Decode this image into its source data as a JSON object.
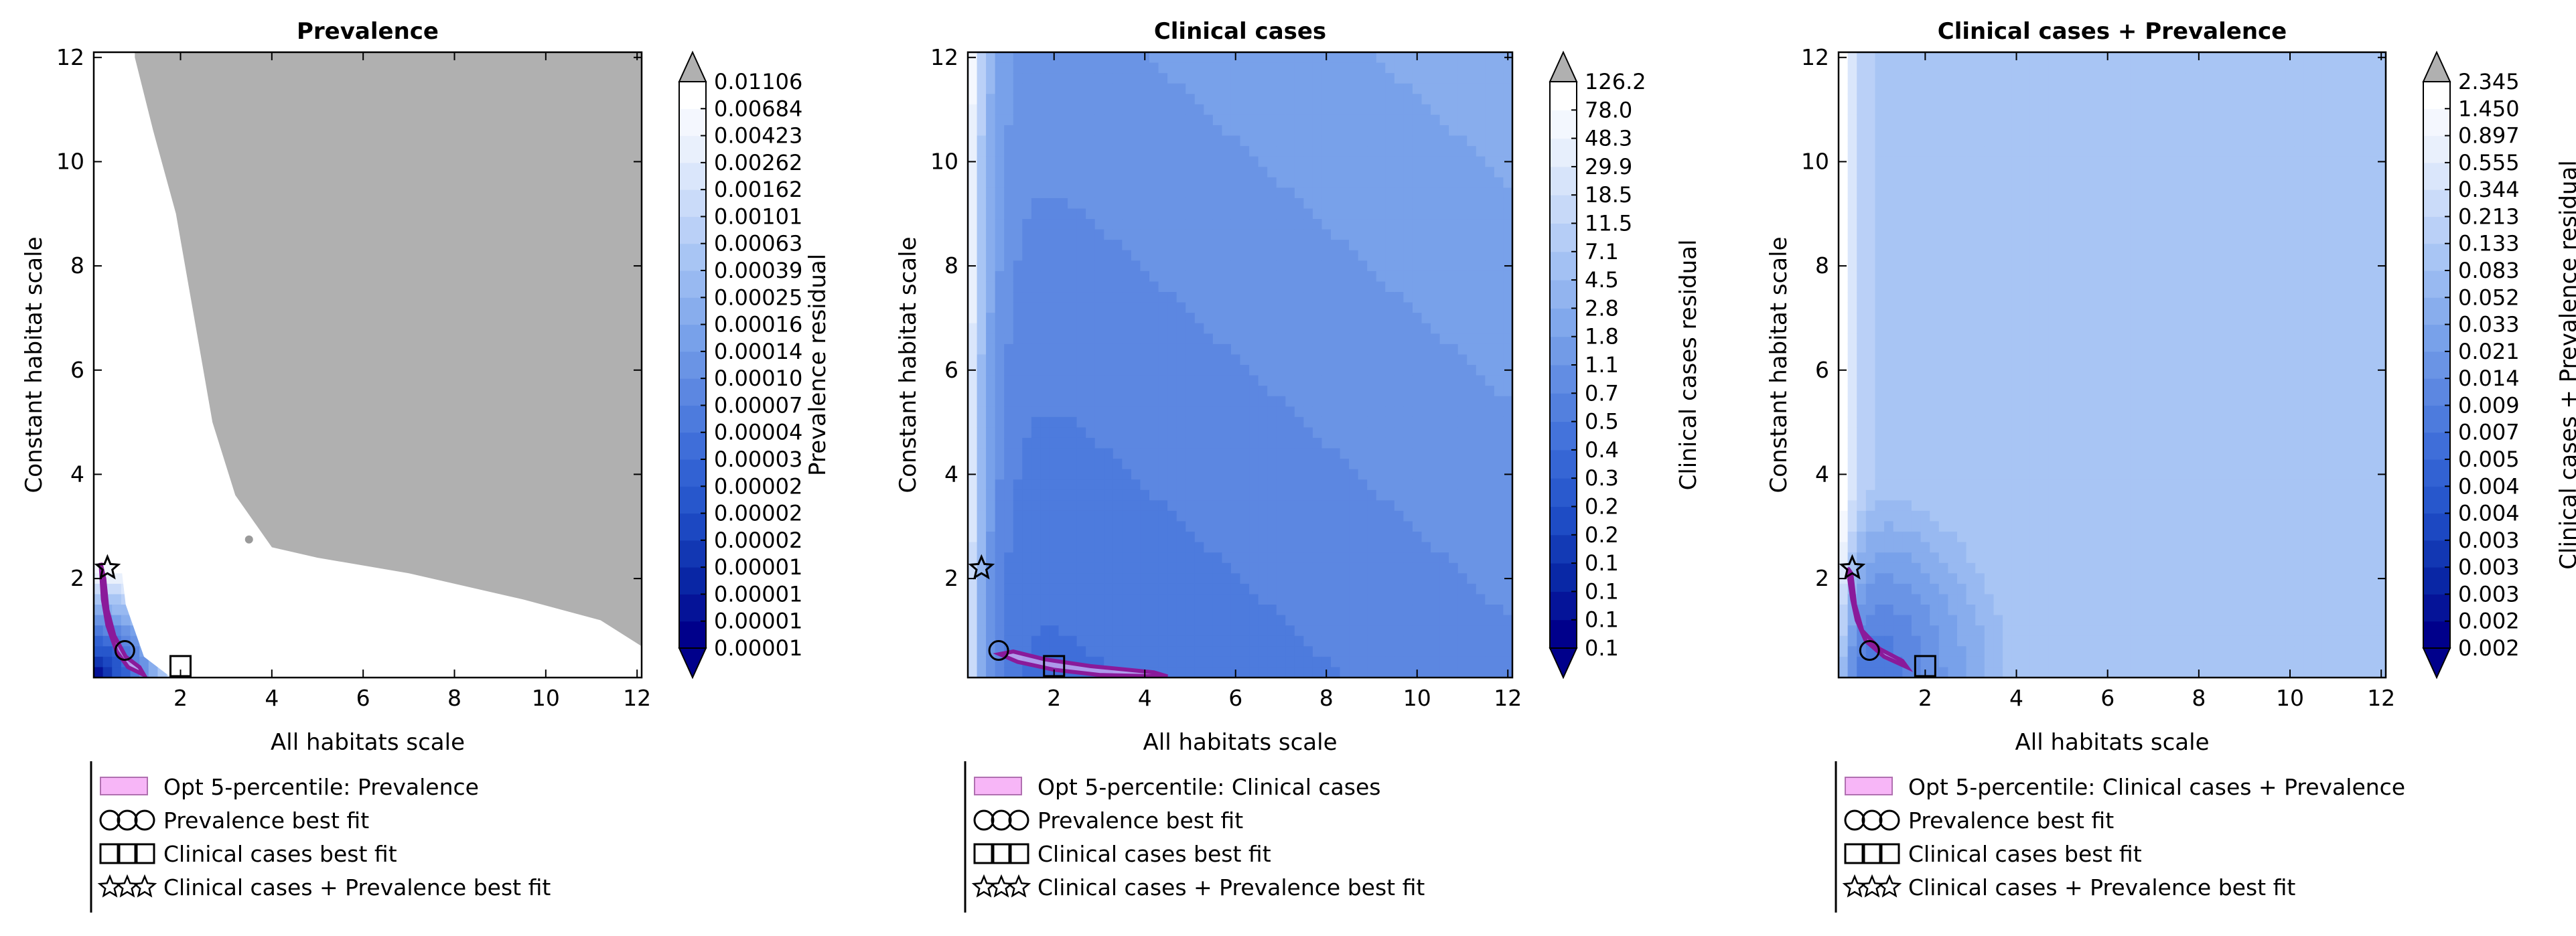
{
  "chart_data": [
    {
      "type": "contour",
      "title": "Prevalence",
      "xlabel": "All habitats scale",
      "ylabel": "Constant habitat scale",
      "xlim": [
        0.1,
        12.1
      ],
      "ylim": [
        0.1,
        12.1
      ],
      "xticks": [
        2,
        4,
        6,
        8,
        10,
        12
      ],
      "yticks": [
        2,
        4,
        6,
        8,
        10,
        12
      ],
      "colorbar": {
        "label": "Prevalence residual",
        "ticks": [
          "0.00001",
          "0.00001",
          "0.00001",
          "0.00001",
          "0.00002",
          "0.00002",
          "0.00002",
          "0.00003",
          "0.00004",
          "0.00007",
          "0.00010",
          "0.00014",
          "0.00016",
          "0.00025",
          "0.00039",
          "0.00063",
          "0.00101",
          "0.00162",
          "0.00262",
          "0.00423",
          "0.00684",
          "0.01106"
        ],
        "extend": "both",
        "over_color": "#b0b0b0"
      },
      "markers": {
        "prevalence_best_fit": {
          "x": 0.78,
          "y": 0.62
        },
        "clinical_cases_best_fit": {
          "x": 2.0,
          "y": 0.32
        },
        "combined_best_fit": {
          "x": 0.4,
          "y": 2.2
        }
      },
      "legend": [
        {
          "label": "Opt 5-percentile: Prevalence",
          "marker": "patch"
        },
        {
          "label": "Prevalence best fit",
          "marker": "circle"
        },
        {
          "label": "Clinical cases best fit",
          "marker": "square"
        },
        {
          "label": "Clinical cases + Prevalence best fit",
          "marker": "star"
        }
      ]
    },
    {
      "type": "contour",
      "title": "Clinical cases",
      "xlabel": "All habitats scale",
      "ylabel": "Constant habitat scale",
      "xlim": [
        0.1,
        12.1
      ],
      "ylim": [
        0.1,
        12.1
      ],
      "xticks": [
        2,
        4,
        6,
        8,
        10,
        12
      ],
      "yticks": [
        2,
        4,
        6,
        8,
        10,
        12
      ],
      "colorbar": {
        "label": "Clinical cases residual",
        "ticks": [
          "0.1",
          "0.1",
          "0.1",
          "0.1",
          "0.2",
          "0.2",
          "0.3",
          "0.4",
          "0.5",
          "0.7",
          "1.1",
          "1.8",
          "2.8",
          "4.5",
          "7.1",
          "11.5",
          "18.5",
          "29.9",
          "48.3",
          "78.0",
          "126.2"
        ],
        "extend": "both",
        "over_color": "#b0b0b0"
      },
      "markers": {
        "prevalence_best_fit": {
          "x": 0.78,
          "y": 0.62
        },
        "clinical_cases_best_fit": {
          "x": 2.0,
          "y": 0.32
        },
        "combined_best_fit": {
          "x": 0.4,
          "y": 2.2
        }
      },
      "legend": [
        {
          "label": "Opt 5-percentile: Clinical cases",
          "marker": "patch"
        },
        {
          "label": "Prevalence best fit",
          "marker": "circle"
        },
        {
          "label": "Clinical cases best fit",
          "marker": "square"
        },
        {
          "label": "Clinical cases + Prevalence best fit",
          "marker": "star"
        }
      ]
    },
    {
      "type": "contour",
      "title": "Clinical cases + Prevalence",
      "xlabel": "All habitats scale",
      "ylabel": "Constant habitat scale",
      "xlim": [
        0.1,
        12.1
      ],
      "ylim": [
        0.1,
        12.1
      ],
      "xticks": [
        2,
        4,
        6,
        8,
        10,
        12
      ],
      "yticks": [
        2,
        4,
        6,
        8,
        10,
        12
      ],
      "colorbar": {
        "label": "Clinical cases + Prevalence residual",
        "ticks": [
          "0.002",
          "0.002",
          "0.003",
          "0.003",
          "0.003",
          "0.004",
          "0.004",
          "0.005",
          "0.007",
          "0.009",
          "0.014",
          "0.021",
          "0.033",
          "0.052",
          "0.083",
          "0.133",
          "0.213",
          "0.344",
          "0.555",
          "0.897",
          "1.450",
          "2.345"
        ],
        "extend": "both",
        "over_color": "#b0b0b0"
      },
      "markers": {
        "prevalence_best_fit": {
          "x": 0.78,
          "y": 0.62
        },
        "clinical_cases_best_fit": {
          "x": 2.0,
          "y": 0.32
        },
        "combined_best_fit": {
          "x": 0.4,
          "y": 2.2
        }
      },
      "legend": [
        {
          "label": "Opt 5-percentile: Clinical cases + Prevalence",
          "marker": "patch"
        },
        {
          "label": "Prevalence best fit",
          "marker": "circle"
        },
        {
          "label": "Clinical cases best fit",
          "marker": "square"
        },
        {
          "label": "Clinical cases + Prevalence best fit",
          "marker": "star"
        }
      ]
    }
  ],
  "colors": {
    "colormap": [
      "#00008b",
      "#0a2aa8",
      "#2050c8",
      "#3a6ad8",
      "#5a86e0",
      "#7aa2ea",
      "#9dbdf2",
      "#c3d6f8",
      "#e6eefc",
      "#ffffff"
    ],
    "over": "#b0b0b0",
    "percentile_patch": "#f7b6f7",
    "percentile_edge": "#8a1a9a"
  }
}
